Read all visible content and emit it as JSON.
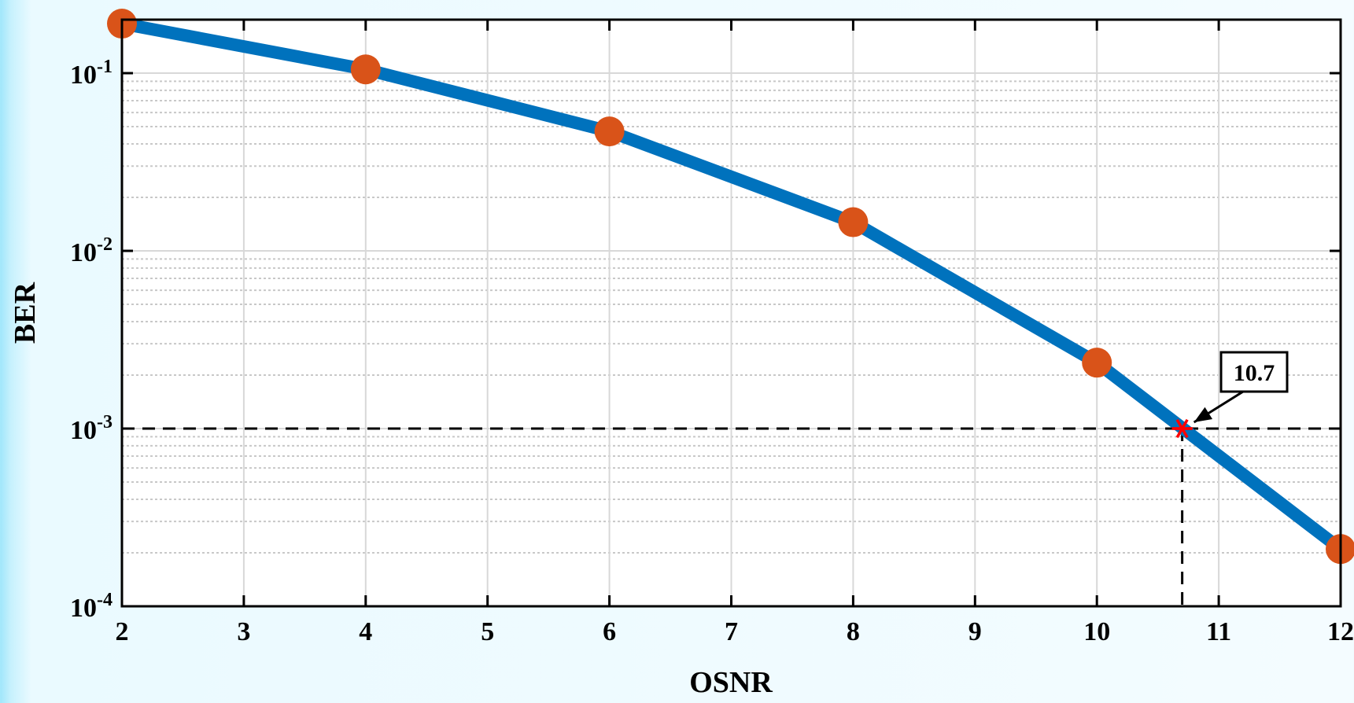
{
  "chart_data": {
    "type": "line",
    "title": "",
    "xlabel": "OSNR",
    "ylabel": "BER",
    "xscale": "linear",
    "yscale": "log",
    "xlim": [
      2,
      12
    ],
    "ylim": [
      0.0001,
      0.2
    ],
    "xticks": [
      2,
      3,
      4,
      5,
      6,
      7,
      8,
      9,
      10,
      11,
      12
    ],
    "xtick_labels": [
      "2",
      "3",
      "4",
      "5",
      "6",
      "7",
      "8",
      "9",
      "10",
      "11",
      "12"
    ],
    "yticks": [
      0.1,
      0.01,
      0.001,
      0.0001
    ],
    "ytick_labels": [
      {
        "base": "10",
        "exp": "-1"
      },
      {
        "base": "10",
        "exp": "-2"
      },
      {
        "base": "10",
        "exp": "-3"
      },
      {
        "base": "10",
        "exp": "-4"
      }
    ],
    "grid": {
      "major": true,
      "minor_y": true
    },
    "series": [
      {
        "x": [
          2,
          4,
          6,
          8,
          10,
          12
        ],
        "y": [
          0.19,
          0.105,
          0.047,
          0.0145,
          0.00235,
          0.00021
        ],
        "line_color": "#0072bd",
        "marker_color": "#d95319",
        "marker": "circle"
      }
    ],
    "threshold": {
      "y": 0.001,
      "x_cross": 10.7,
      "label": "10.7",
      "marker": "star",
      "marker_color": "#ff0000",
      "line_color": "#000000",
      "line_style": "dashed"
    }
  }
}
